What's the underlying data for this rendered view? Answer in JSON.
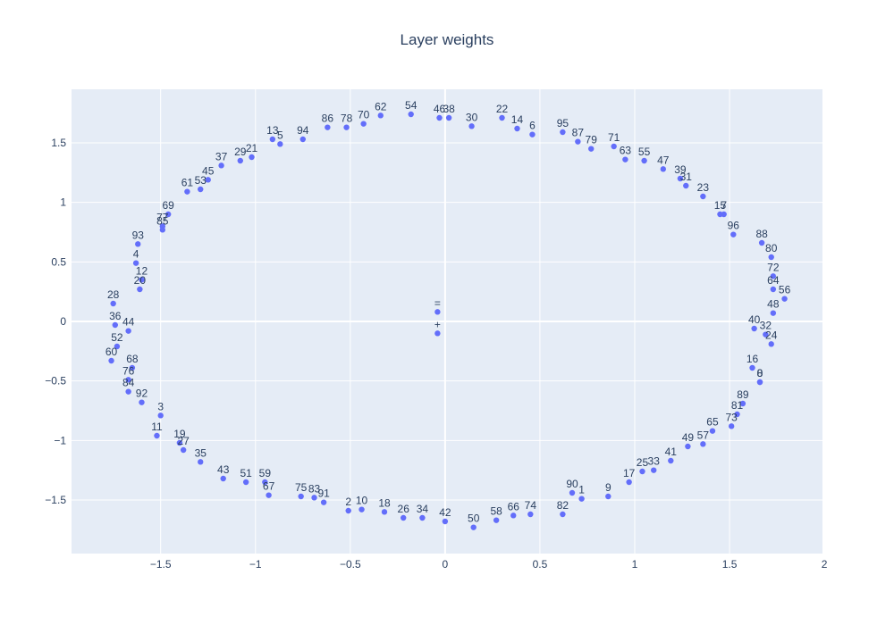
{
  "chart_data": {
    "type": "scatter",
    "title": "Layer weights",
    "xlabel": "",
    "ylabel": "",
    "xlim": [
      -1.97,
      1.99
    ],
    "ylim": [
      -1.95,
      1.95
    ],
    "x_ticks": [
      -1.5,
      -1,
      -0.5,
      0,
      0.5,
      1,
      1.5,
      2
    ],
    "x_tick_labels": [
      "−1.5",
      "−1",
      "−0.5",
      "0",
      "0.5",
      "1",
      "1.5",
      "2"
    ],
    "y_ticks": [
      -1.5,
      -1,
      -0.5,
      0,
      0.5,
      1,
      1.5
    ],
    "y_tick_labels": [
      "−1.5",
      "−1",
      "−0.5",
      "0",
      "0.5",
      "1",
      "1.5"
    ],
    "grid": true,
    "marker_color": "#636efa",
    "plot_background": "#e5ecf6",
    "points": [
      {
        "label": "0",
        "x": 1.66,
        "y": -0.51
      },
      {
        "label": "1",
        "x": 0.72,
        "y": -1.49
      },
      {
        "label": "2",
        "x": -0.51,
        "y": -1.59
      },
      {
        "label": "3",
        "x": -1.5,
        "y": -0.79
      },
      {
        "label": "4",
        "x": -1.63,
        "y": 0.49
      },
      {
        "label": "5",
        "x": -0.87,
        "y": 1.49
      },
      {
        "label": "6",
        "x": 0.46,
        "y": 1.57
      },
      {
        "label": "7",
        "x": 1.47,
        "y": 0.9
      },
      {
        "label": "8",
        "x": 1.66,
        "y": -0.51
      },
      {
        "label": "9",
        "x": 0.86,
        "y": -1.47
      },
      {
        "label": "10",
        "x": -0.44,
        "y": -1.58
      },
      {
        "label": "11",
        "x": -1.52,
        "y": -0.96
      },
      {
        "label": "12",
        "x": -1.6,
        "y": 0.35
      },
      {
        "label": "13",
        "x": -0.91,
        "y": 1.53
      },
      {
        "label": "14",
        "x": 0.38,
        "y": 1.62
      },
      {
        "label": "15",
        "x": 1.45,
        "y": 0.9
      },
      {
        "label": "16",
        "x": 1.62,
        "y": -0.39
      },
      {
        "label": "17",
        "x": 0.97,
        "y": -1.35
      },
      {
        "label": "18",
        "x": -0.32,
        "y": -1.6
      },
      {
        "label": "19",
        "x": -1.4,
        "y": -1.02
      },
      {
        "label": "20",
        "x": -1.61,
        "y": 0.27
      },
      {
        "label": "21",
        "x": -1.02,
        "y": 1.38
      },
      {
        "label": "22",
        "x": 0.3,
        "y": 1.71
      },
      {
        "label": "23",
        "x": 1.36,
        "y": 1.05
      },
      {
        "label": "24",
        "x": 1.72,
        "y": -0.19
      },
      {
        "label": "25",
        "x": 1.04,
        "y": -1.26
      },
      {
        "label": "26",
        "x": -0.22,
        "y": -1.65
      },
      {
        "label": "27",
        "x": -1.38,
        "y": -1.08
      },
      {
        "label": "28",
        "x": -1.75,
        "y": 0.15
      },
      {
        "label": "29",
        "x": -1.08,
        "y": 1.35
      },
      {
        "label": "30",
        "x": 0.14,
        "y": 1.64
      },
      {
        "label": "31",
        "x": 1.27,
        "y": 1.14
      },
      {
        "label": "32",
        "x": 1.69,
        "y": -0.11
      },
      {
        "label": "33",
        "x": 1.1,
        "y": -1.25
      },
      {
        "label": "34",
        "x": -0.12,
        "y": -1.65
      },
      {
        "label": "35",
        "x": -1.29,
        "y": -1.18
      },
      {
        "label": "36",
        "x": -1.74,
        "y": -0.03
      },
      {
        "label": "37",
        "x": -1.18,
        "y": 1.31
      },
      {
        "label": "38",
        "x": 0.02,
        "y": 1.71
      },
      {
        "label": "39",
        "x": 1.24,
        "y": 1.2
      },
      {
        "label": "40",
        "x": 1.63,
        "y": -0.06
      },
      {
        "label": "41",
        "x": 1.19,
        "y": -1.17
      },
      {
        "label": "42",
        "x": 0.0,
        "y": -1.68
      },
      {
        "label": "43",
        "x": -1.17,
        "y": -1.32
      },
      {
        "label": "44",
        "x": -1.67,
        "y": -0.08
      },
      {
        "label": "45",
        "x": -1.25,
        "y": 1.19
      },
      {
        "label": "46",
        "x": -0.03,
        "y": 1.71
      },
      {
        "label": "47",
        "x": 1.15,
        "y": 1.28
      },
      {
        "label": "48",
        "x": 1.73,
        "y": 0.07
      },
      {
        "label": "49",
        "x": 1.28,
        "y": -1.05
      },
      {
        "label": "50",
        "x": 0.15,
        "y": -1.73
      },
      {
        "label": "51",
        "x": -1.05,
        "y": -1.35
      },
      {
        "label": "52",
        "x": -1.73,
        "y": -0.21
      },
      {
        "label": "53",
        "x": -1.29,
        "y": 1.11
      },
      {
        "label": "54",
        "x": -0.18,
        "y": 1.74
      },
      {
        "label": "55",
        "x": 1.05,
        "y": 1.35
      },
      {
        "label": "56",
        "x": 1.79,
        "y": 0.19
      },
      {
        "label": "57",
        "x": 1.36,
        "y": -1.03
      },
      {
        "label": "58",
        "x": 0.27,
        "y": -1.67
      },
      {
        "label": "59",
        "x": -0.95,
        "y": -1.35
      },
      {
        "label": "60",
        "x": -1.76,
        "y": -0.33
      },
      {
        "label": "61",
        "x": -1.36,
        "y": 1.09
      },
      {
        "label": "62",
        "x": -0.34,
        "y": 1.73
      },
      {
        "label": "63",
        "x": 0.95,
        "y": 1.36
      },
      {
        "label": "64",
        "x": 1.73,
        "y": 0.27
      },
      {
        "label": "65",
        "x": 1.41,
        "y": -0.92
      },
      {
        "label": "66",
        "x": 0.36,
        "y": -1.63
      },
      {
        "label": "67",
        "x": -0.93,
        "y": -1.46
      },
      {
        "label": "68",
        "x": -1.65,
        "y": -0.39
      },
      {
        "label": "69",
        "x": -1.46,
        "y": 0.9
      },
      {
        "label": "70",
        "x": -0.43,
        "y": 1.66
      },
      {
        "label": "71",
        "x": 0.89,
        "y": 1.47
      },
      {
        "label": "72",
        "x": 1.73,
        "y": 0.38
      },
      {
        "label": "73",
        "x": 1.51,
        "y": -0.88
      },
      {
        "label": "74",
        "x": 0.45,
        "y": -1.62
      },
      {
        "label": "75",
        "x": -0.76,
        "y": -1.47
      },
      {
        "label": "76",
        "x": -1.67,
        "y": -0.49
      },
      {
        "label": "77",
        "x": -1.49,
        "y": 0.8
      },
      {
        "label": "78",
        "x": -0.52,
        "y": 1.63
      },
      {
        "label": "79",
        "x": 0.77,
        "y": 1.45
      },
      {
        "label": "80",
        "x": 1.72,
        "y": 0.54
      },
      {
        "label": "81",
        "x": 1.54,
        "y": -0.78
      },
      {
        "label": "82",
        "x": 0.62,
        "y": -1.62
      },
      {
        "label": "83",
        "x": -0.69,
        "y": -1.48
      },
      {
        "label": "84",
        "x": -1.67,
        "y": -0.59
      },
      {
        "label": "85",
        "x": -1.49,
        "y": 0.77
      },
      {
        "label": "86",
        "x": -0.62,
        "y": 1.63
      },
      {
        "label": "87",
        "x": 0.7,
        "y": 1.51
      },
      {
        "label": "88",
        "x": 1.67,
        "y": 0.66
      },
      {
        "label": "89",
        "x": 1.57,
        "y": -0.69
      },
      {
        "label": "90",
        "x": 0.67,
        "y": -1.44
      },
      {
        "label": "91",
        "x": -0.64,
        "y": -1.52
      },
      {
        "label": "92",
        "x": -1.6,
        "y": -0.68
      },
      {
        "label": "93",
        "x": -1.62,
        "y": 0.65
      },
      {
        "label": "94",
        "x": -0.75,
        "y": 1.53
      },
      {
        "label": "95",
        "x": 0.62,
        "y": 1.59
      },
      {
        "label": "96",
        "x": 1.52,
        "y": 0.73
      },
      {
        "label": "=",
        "x": -0.04,
        "y": 0.08
      },
      {
        "label": "+",
        "x": -0.04,
        "y": -0.1
      }
    ]
  }
}
